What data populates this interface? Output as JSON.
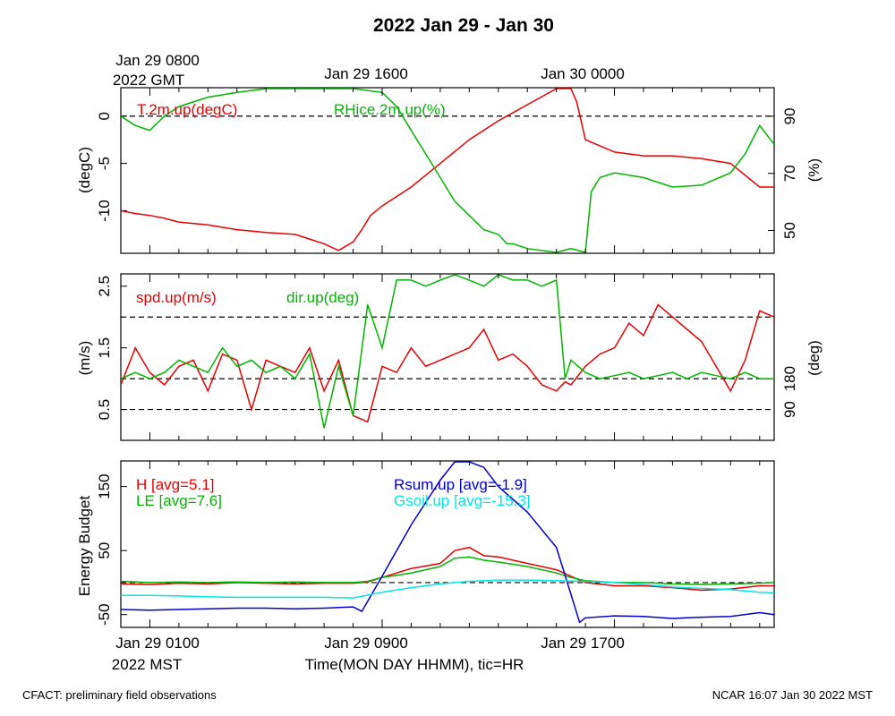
{
  "title": "2022 Jan 29 - Jan 30",
  "colors": {
    "red": "#e60000",
    "green": "#00b400",
    "blue": "#0000cc",
    "cyan": "#00e6e6",
    "black": "#000000"
  },
  "top_time_labels": [
    "Jan 29 0800",
    "Jan 29 1600",
    "Jan 30 0000"
  ],
  "top_tz_label": "2022 GMT",
  "bottom_time_labels": [
    "Jan 29 0100",
    "Jan 29 0900",
    "Jan 29 1700"
  ],
  "bottom_tz_label": "2022 MST",
  "xlabel": "Time(MON DAY HHMM), tic=HR",
  "footer_left": "CFACT: preliminary field observations",
  "footer_right": "NCAR 16:07 Jan 30 2022 MST",
  "chart_data": [
    {
      "type": "line",
      "title": "T.2m.up / RHice.2m.up",
      "x_unit": "hours since Jan 29 0000 MST",
      "xlim": [
        0,
        22.5
      ],
      "ylabel_left": "(degC)",
      "ylabel_right": "(%)",
      "ylim_left": [
        -14.5,
        3
      ],
      "ylim_right": [
        42,
        100
      ],
      "yticks_left": [
        0,
        -5,
        -10
      ],
      "yticks_right": [
        90,
        70,
        50
      ],
      "refline_left": 0,
      "series": [
        {
          "name": "T.2m.up(degC)",
          "axis": "left",
          "color": "red",
          "x": [
            0,
            0.5,
            1,
            1.5,
            2,
            3,
            4,
            5,
            6,
            6.5,
            7,
            7.5,
            8,
            8.3,
            8.6,
            9,
            10,
            11,
            12,
            13,
            14,
            15,
            15.5,
            15.7,
            16,
            17,
            18,
            19,
            20,
            21,
            22,
            22.5
          ],
          "y": [
            -10,
            -10.3,
            -10.5,
            -10.8,
            -11.2,
            -11.5,
            -12,
            -12.3,
            -12.5,
            -13,
            -13.5,
            -14.2,
            -13.3,
            -12,
            -10.5,
            -9.5,
            -7.5,
            -5,
            -2.5,
            -0.5,
            1.2,
            3,
            3,
            1.5,
            -2.5,
            -3.8,
            -4.2,
            -4.2,
            -4.5,
            -5,
            -7.5,
            -7.5
          ]
        },
        {
          "name": "RHice.2m.up(%)",
          "axis": "left",
          "color": "green",
          "x": [
            0,
            0.5,
            1,
            1.5,
            2,
            3,
            4,
            5,
            6,
            8,
            9,
            9.5,
            10,
            10.5,
            11,
            11.5,
            12,
            12.5,
            13,
            13.3,
            13.5,
            14,
            15,
            15.5,
            16,
            16.2,
            16.5,
            17,
            18,
            19,
            20,
            21,
            21.5,
            22,
            22.5
          ],
          "y": [
            0,
            -1,
            -1.5,
            0,
            1,
            2,
            2.5,
            3,
            3,
            3,
            2.5,
            1,
            -1.5,
            -4,
            -6.5,
            -9,
            -10.5,
            -12,
            -12.5,
            -13.5,
            -13.5,
            -14,
            -14.5,
            -14,
            -14.5,
            -8,
            -6.5,
            -6,
            -6.5,
            -7.5,
            -7.3,
            -6,
            -4,
            -1,
            -3
          ]
        }
      ]
    },
    {
      "type": "line",
      "title": "spd.up / dir.up",
      "x_unit": "hours since Jan 29 0000 MST",
      "xlim": [
        0,
        22.5
      ],
      "ylabel_left": "(m/s)",
      "ylabel_right": "(deg)",
      "ylim_left": [
        0,
        2.7
      ],
      "yticks_left": [
        2.5,
        1.5,
        0.5
      ],
      "yticks_right": [
        180,
        90
      ],
      "reflines_left": [
        2.0,
        1.0,
        0.5
      ],
      "series": [
        {
          "name": "spd.up(m/s)",
          "axis": "left",
          "color": "red",
          "x": [
            0,
            0.5,
            1,
            1.5,
            2,
            2.5,
            3,
            3.5,
            4,
            4.5,
            5,
            5.5,
            6,
            6.5,
            7,
            7.5,
            8,
            8.5,
            9,
            9.5,
            10,
            10.5,
            11,
            11.5,
            12,
            12.5,
            13,
            13.5,
            14,
            14.5,
            15,
            15.3,
            15.5,
            16,
            16.5,
            17,
            17.5,
            18,
            18.5,
            19,
            19.5,
            20,
            20.5,
            21,
            21.5,
            22,
            22.5
          ],
          "y": [
            0.9,
            1.5,
            1.1,
            0.9,
            1.2,
            1.3,
            0.8,
            1.4,
            1.3,
            0.5,
            1.3,
            1.2,
            1.1,
            1.5,
            0.8,
            1.3,
            0.4,
            0.3,
            1.2,
            1.1,
            1.5,
            1.2,
            1.3,
            1.4,
            1.5,
            1.8,
            1.3,
            1.4,
            1.2,
            0.9,
            0.8,
            0.95,
            0.9,
            1.2,
            1.4,
            1.5,
            1.9,
            1.7,
            2.2,
            2.0,
            1.8,
            1.6,
            1.2,
            0.8,
            1.3,
            2.1,
            2.0
          ]
        },
        {
          "name": "dir.up(deg)",
          "axis": "left",
          "color": "green",
          "x": [
            0,
            0.5,
            1,
            1.5,
            2,
            2.5,
            3,
            3.5,
            4,
            4.5,
            5,
            5.5,
            6,
            6.5,
            7,
            7.5,
            8,
            8.5,
            9,
            9.5,
            10,
            10.5,
            11,
            11.5,
            12,
            12.5,
            13,
            13.5,
            14,
            14.5,
            15,
            15.3,
            15.5,
            16,
            16.5,
            17,
            17.5,
            18,
            18.5,
            19,
            19.5,
            20,
            20.5,
            21,
            21.5,
            22,
            22.5
          ],
          "y": [
            1.0,
            1.1,
            1.0,
            1.1,
            1.3,
            1.2,
            1.1,
            1.5,
            1.2,
            1.3,
            1.1,
            1.2,
            1.0,
            1.4,
            0.2,
            1.2,
            0.4,
            2.2,
            1.5,
            2.6,
            2.6,
            2.5,
            2.6,
            2.7,
            2.6,
            2.5,
            2.7,
            2.6,
            2.6,
            2.5,
            2.6,
            1.0,
            1.3,
            1.1,
            1.0,
            1.05,
            1.1,
            1.0,
            1.05,
            1.1,
            1.0,
            1.1,
            1.05,
            1.0,
            1.1,
            1.0,
            1.0
          ]
        }
      ]
    },
    {
      "type": "line",
      "title": "Energy Budget",
      "x_unit": "hours since Jan 29 0000 MST",
      "xlim": [
        0,
        22.5
      ],
      "ylabel": "Energy Budget",
      "ylim": [
        -70,
        190
      ],
      "yticks": [
        150,
        50,
        -50
      ],
      "refline": 0,
      "series": [
        {
          "name": "H [avg=5.1]",
          "color": "red",
          "x": [
            0,
            1,
            2,
            3,
            4,
            5,
            6,
            7,
            8,
            8.5,
            9,
            10,
            11,
            11.5,
            12,
            12.5,
            13,
            14,
            15,
            15.5,
            16,
            17,
            18,
            19,
            20,
            21,
            22,
            22.5
          ],
          "y": [
            -2,
            -3,
            -1,
            -2,
            0,
            -1,
            -2,
            -1,
            -1,
            1,
            8,
            22,
            30,
            50,
            55,
            42,
            40,
            30,
            20,
            10,
            0,
            -5,
            -5,
            -8,
            -12,
            -10,
            -5,
            -5
          ]
        },
        {
          "name": "LE [avg=7.6]",
          "color": "green",
          "x": [
            0,
            1,
            2,
            3,
            4,
            5,
            6,
            7,
            8,
            8.5,
            9,
            10,
            11,
            11.5,
            12,
            12.5,
            13,
            14,
            15,
            15.5,
            16,
            17,
            18,
            19,
            20,
            21,
            22,
            22.5
          ],
          "y": [
            2,
            0,
            1,
            0,
            1,
            0,
            1,
            0,
            0,
            2,
            8,
            15,
            25,
            38,
            40,
            35,
            32,
            25,
            15,
            8,
            3,
            0,
            0,
            -2,
            -3,
            -2,
            -1,
            0
          ]
        },
        {
          "name": "Rsum.up [avg=-1.9]",
          "color": "blue",
          "x": [
            0,
            1,
            2,
            3,
            4,
            5,
            6,
            7,
            8,
            8.3,
            9,
            10,
            11,
            11.5,
            12,
            12.5,
            13,
            14,
            15,
            15.8,
            16,
            17,
            18,
            19,
            20,
            21,
            22,
            22.5
          ],
          "y": [
            -42,
            -43,
            -42,
            -41,
            -40,
            -40,
            -41,
            -40,
            -38,
            -45,
            10,
            90,
            160,
            190,
            190,
            180,
            150,
            110,
            55,
            -62,
            -55,
            -52,
            -53,
            -56,
            -54,
            -53,
            -47,
            -50
          ]
        },
        {
          "name": "Gsoil.up [avg=-15.3]",
          "color": "cyan",
          "x": [
            0,
            1,
            2,
            3,
            4,
            5,
            6,
            7,
            8,
            9,
            10,
            11,
            12,
            13,
            14,
            15,
            16,
            17,
            18,
            19,
            20,
            21,
            22,
            22.5
          ],
          "y": [
            -20,
            -20,
            -21,
            -22,
            -23,
            -23,
            -23,
            -23,
            -24,
            -15,
            -8,
            -2,
            2,
            4,
            4,
            3,
            2,
            0,
            -3,
            -7,
            -9,
            -11,
            -15,
            -16
          ]
        }
      ]
    }
  ],
  "panel_labels": [
    {
      "left_label": "T.2m.up(degC)",
      "right_label": "RHice.2m.up(%)"
    },
    {
      "left_label": "spd.up(m/s)",
      "right_label": "dir.up(deg)"
    },
    {
      "l1": "H [avg=5.1]",
      "l2": "LE [avg=7.6]",
      "r1": "Rsum.up [avg=-1.9]",
      "r2": "Gsoil.up [avg=-15.3]"
    }
  ]
}
